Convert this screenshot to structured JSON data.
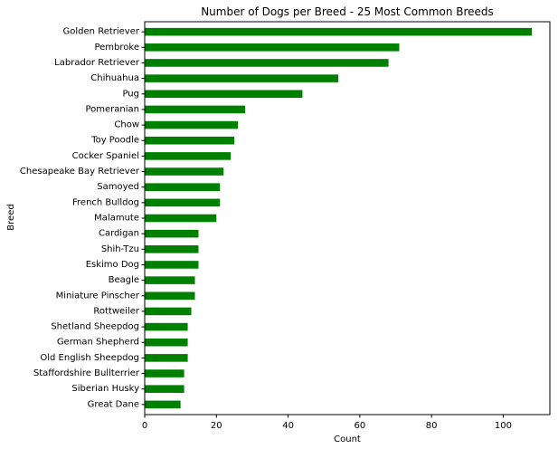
{
  "chart_data": {
    "type": "bar",
    "orientation": "horizontal",
    "title": "Number of Dogs per Breed - 25 Most Common Breeds",
    "xlabel": "Count",
    "ylabel": "Breed",
    "xlim": [
      0,
      113
    ],
    "x_ticks": [
      0,
      20,
      40,
      60,
      80,
      100
    ],
    "grid": false,
    "bar_color": "#008000",
    "categories": [
      "Golden Retriever",
      "Pembroke",
      "Labrador Retriever",
      "Chihuahua",
      "Pug",
      "Pomeranian",
      "Chow",
      "Toy Poodle",
      "Cocker Spaniel",
      "Chesapeake Bay Retriever",
      "Samoyed",
      "French Bulldog",
      "Malamute",
      "Cardigan",
      "Shih-Tzu",
      "Eskimo Dog",
      "Beagle",
      "Miniature Pinscher",
      "Rottweiler",
      "Shetland Sheepdog",
      "German Shepherd",
      "Old English Sheepdog",
      "Staffordshire Bullterrier",
      "Siberian Husky",
      "Great Dane"
    ],
    "values": [
      108,
      71,
      68,
      54,
      44,
      28,
      26,
      25,
      24,
      22,
      21,
      21,
      20,
      15,
      15,
      15,
      14,
      14,
      13,
      12,
      12,
      12,
      11,
      11,
      10
    ]
  }
}
